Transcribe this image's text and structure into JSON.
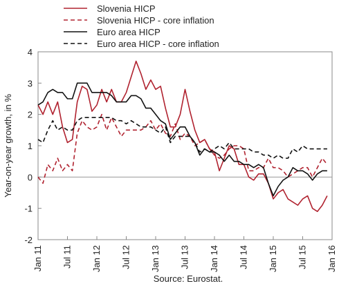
{
  "chart_data": {
    "type": "line",
    "ylabel": "Year-on-year growth, in %",
    "ylim": [
      -2,
      4
    ],
    "yticks": [
      -2,
      -1,
      0,
      1,
      2,
      3,
      4
    ],
    "xlim": [
      "2011-01",
      "2016-01"
    ],
    "xticks": [
      "Jan 11",
      "Jul 11",
      "Jan 12",
      "Jul 12",
      "Jan 13",
      "Jul 13",
      "Jan 14",
      "Jul 14",
      "Jan 15",
      "Jul 15",
      "Jan 16"
    ],
    "x": [
      "2011-01",
      "2011-02",
      "2011-03",
      "2011-04",
      "2011-05",
      "2011-06",
      "2011-07",
      "2011-08",
      "2011-09",
      "2011-10",
      "2011-11",
      "2011-12",
      "2012-01",
      "2012-02",
      "2012-03",
      "2012-04",
      "2012-05",
      "2012-06",
      "2012-07",
      "2012-08",
      "2012-09",
      "2012-10",
      "2012-11",
      "2012-12",
      "2013-01",
      "2013-02",
      "2013-03",
      "2013-04",
      "2013-05",
      "2013-06",
      "2013-07",
      "2013-08",
      "2013-09",
      "2013-10",
      "2013-11",
      "2013-12",
      "2014-01",
      "2014-02",
      "2014-03",
      "2014-04",
      "2014-05",
      "2014-06",
      "2014-07",
      "2014-08",
      "2014-09",
      "2014-10",
      "2014-11",
      "2014-12",
      "2015-01",
      "2015-02",
      "2015-03",
      "2015-04",
      "2015-05",
      "2015-06",
      "2015-07",
      "2015-08",
      "2015-09",
      "2015-10",
      "2015-11",
      "2015-12"
    ],
    "series": [
      {
        "name": "Slovenia HICP",
        "color": "#b0222f",
        "dash": "solid",
        "values": [
          2.3,
          2.0,
          2.4,
          2.0,
          2.4,
          1.6,
          1.1,
          1.2,
          2.4,
          2.9,
          2.8,
          2.1,
          2.3,
          2.8,
          2.4,
          2.8,
          2.4,
          2.4,
          2.7,
          3.2,
          3.7,
          3.3,
          2.8,
          3.1,
          2.8,
          2.9,
          2.2,
          1.6,
          1.6,
          2.0,
          2.8,
          2.1,
          1.5,
          1.1,
          1.2,
          0.9,
          0.8,
          0.2,
          0.6,
          1.0,
          0.9,
          0.4,
          0.4,
          0.0,
          -0.1,
          0.1,
          0.1,
          -0.2,
          -0.7,
          -0.5,
          -0.4,
          -0.7,
          -0.8,
          -0.9,
          -0.7,
          -0.6,
          -1.0,
          -1.1,
          -0.9,
          -0.6
        ]
      },
      {
        "name": "Slovenia HICP - core inflation",
        "color": "#b0222f",
        "dash": "dashed",
        "values": [
          0.0,
          -0.2,
          0.4,
          0.2,
          0.6,
          0.2,
          0.4,
          0.2,
          1.4,
          1.8,
          1.6,
          1.5,
          1.6,
          2.0,
          1.5,
          1.9,
          1.6,
          1.3,
          1.5,
          1.5,
          1.5,
          1.5,
          1.6,
          1.8,
          1.5,
          1.7,
          1.4,
          1.3,
          1.7,
          1.2,
          1.4,
          1.3,
          1.0,
          1.1,
          1.2,
          0.9,
          0.7,
          0.6,
          0.7,
          0.9,
          1.0,
          1.0,
          0.9,
          0.2,
          0.2,
          0.3,
          0.3,
          0.6,
          0.3,
          0.3,
          0.2,
          0.0,
          0.1,
          0.2,
          0.3,
          0.3,
          0.0,
          0.3,
          0.6,
          0.4
        ]
      },
      {
        "name": "Euro area HICP",
        "color": "#111111",
        "dash": "solid",
        "values": [
          2.3,
          2.4,
          2.7,
          2.8,
          2.7,
          2.7,
          2.5,
          2.5,
          3.0,
          3.0,
          3.0,
          2.7,
          2.7,
          2.7,
          2.7,
          2.6,
          2.4,
          2.4,
          2.4,
          2.6,
          2.6,
          2.5,
          2.2,
          2.2,
          2.0,
          1.8,
          1.7,
          1.2,
          1.4,
          1.6,
          1.6,
          1.3,
          1.1,
          0.7,
          0.9,
          0.8,
          0.8,
          0.7,
          0.5,
          0.7,
          0.5,
          0.5,
          0.4,
          0.4,
          0.3,
          0.4,
          0.3,
          -0.2,
          -0.6,
          -0.3,
          -0.1,
          0.0,
          0.3,
          0.2,
          0.2,
          0.1,
          -0.1,
          0.1,
          0.2,
          0.2
        ]
      },
      {
        "name": "Euro area HICP - core inflation",
        "color": "#111111",
        "dash": "dashed",
        "values": [
          1.2,
          1.1,
          1.5,
          1.8,
          1.5,
          1.6,
          1.5,
          1.5,
          1.8,
          1.9,
          1.9,
          1.9,
          1.9,
          1.9,
          1.9,
          1.9,
          1.8,
          1.8,
          1.7,
          1.8,
          1.7,
          1.6,
          1.6,
          1.6,
          1.5,
          1.4,
          1.6,
          1.1,
          1.3,
          1.3,
          1.3,
          1.3,
          1.1,
          0.8,
          0.9,
          0.8,
          0.9,
          1.0,
          0.9,
          1.1,
          0.9,
          0.9,
          0.9,
          0.9,
          0.8,
          0.8,
          0.7,
          0.7,
          0.6,
          0.7,
          0.6,
          0.6,
          0.9,
          0.8,
          1.0,
          0.9,
          0.9,
          0.9,
          0.9,
          0.9
        ]
      }
    ],
    "legend": "top-left",
    "grid": false,
    "source": "Source: Eurostat."
  }
}
